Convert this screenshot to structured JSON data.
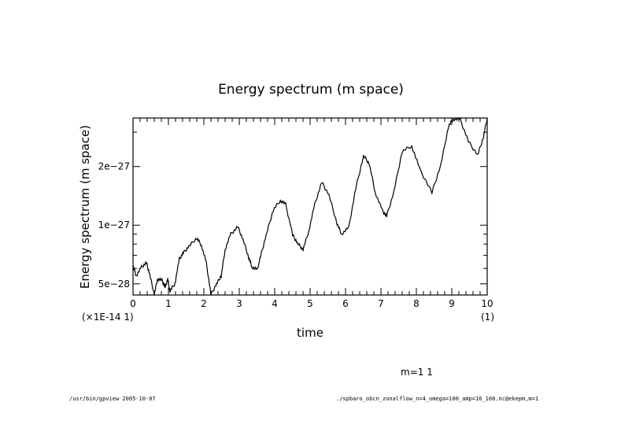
{
  "chart_data": {
    "type": "line",
    "title": "Energy spectrum (m space)",
    "xlabel": "time",
    "ylabel": "Energy spectrum (m space)",
    "x_scale_note": "(×1E-14 1)",
    "x_unit_note": "(1)",
    "xlim": [
      0,
      10
    ],
    "ylim": [
      4.38e-28,
      3.55e-27
    ],
    "yscale": "log",
    "grid": false,
    "x_ticks": [
      0,
      1,
      2,
      3,
      4,
      5,
      6,
      7,
      8,
      9,
      10
    ],
    "x_tick_labels": [
      "0",
      "1",
      "2",
      "3",
      "4",
      "5",
      "6",
      "7",
      "8",
      "9",
      "10"
    ],
    "y_major_ticks": [
      5e-28,
      1e-27,
      2e-27
    ],
    "y_tick_labels": [
      "5e−28",
      "1e−27",
      "2e−27"
    ],
    "y_minor_ticks": [
      6e-28,
      7e-28,
      8e-28,
      9e-28,
      3e-27
    ],
    "series": [
      {
        "name": "m=1 1",
        "color": "#000000",
        "x": [
          0,
          0.09,
          0.24,
          0.38,
          0.47,
          0.6,
          0.69,
          0.82,
          0.91,
          0.98,
          1.04,
          1.18,
          1.31,
          1.42,
          1.58,
          1.8,
          1.93,
          2.07,
          2.2,
          2.36,
          2.49,
          2.6,
          2.76,
          2.96,
          3.11,
          3.27,
          3.36,
          3.51,
          3.6,
          3.76,
          3.96,
          4.16,
          4.31,
          4.51,
          4.64,
          4.8,
          4.96,
          5.13,
          5.33,
          5.53,
          5.76,
          5.89,
          6.09,
          6.29,
          6.51,
          6.67,
          6.84,
          7.04,
          7.16,
          7.36,
          7.6,
          7.87,
          8.09,
          8.44,
          8.69,
          8.91,
          9.04,
          9.24,
          9.47,
          9.73,
          9.89,
          10.0
        ],
        "y": [
          6.2e-28,
          5.5e-28,
          6.1e-28,
          6.4e-28,
          5.6e-28,
          4.4e-28,
          5.3e-28,
          5.2e-28,
          4.8e-28,
          5.3e-28,
          4.6e-28,
          5e-28,
          6.7e-28,
          7.2e-28,
          7.8e-28,
          8.6e-28,
          7.9e-28,
          6.4e-28,
          4.4e-28,
          5e-28,
          5.5e-28,
          7.5e-28,
          9e-28,
          9.8e-28,
          8.4e-28,
          6.8e-28,
          6.1e-28,
          5.9e-28,
          6.9e-28,
          8.9e-28,
          1.2e-27,
          1.34e-27,
          1.28e-27,
          8.9e-28,
          8.1e-28,
          7.5e-28,
          9.3e-28,
          1.28e-27,
          1.66e-27,
          1.43e-27,
          1.02e-27,
          9e-28,
          9.7e-28,
          1.55e-27,
          2.27e-27,
          2.07e-27,
          1.47e-27,
          1.19e-27,
          1.11e-27,
          1.47e-27,
          2.4e-27,
          2.55e-27,
          1.95e-27,
          1.47e-27,
          2.04e-27,
          3.23e-27,
          3.51e-27,
          3.48e-27,
          2.69e-27,
          2.29e-27,
          2.82e-27,
          3.55e-27
        ]
      }
    ],
    "legend": {
      "text": "m=1 1",
      "placement": "bottom-right"
    },
    "footer": {
      "left": "/usr/bin/gpview  2005-10-07",
      "right": "./spbaro_obcn_zonalflow_n=4_omega=100_amp=16_100.nc@ekepm,m=1"
    }
  }
}
